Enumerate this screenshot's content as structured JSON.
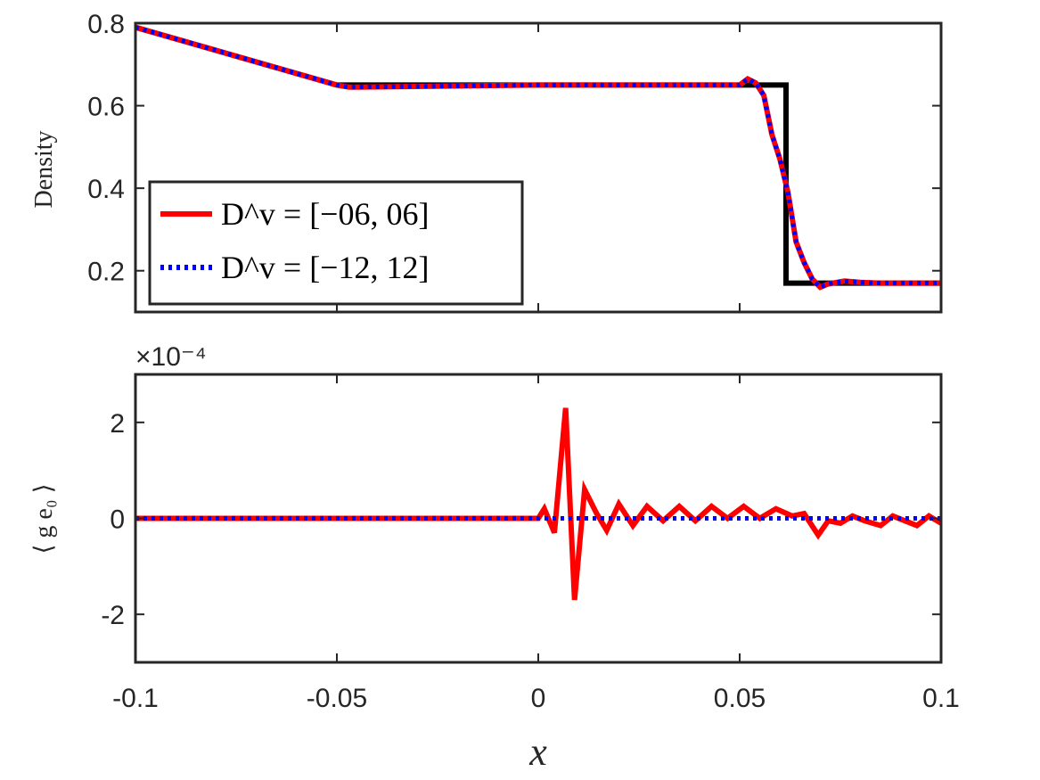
{
  "chart_data": [
    {
      "type": "line",
      "ylabel": "Density",
      "xlabel": "",
      "xlim": [
        -0.1,
        0.1
      ],
      "ylim": [
        0.1,
        0.8
      ],
      "xticks": [
        "",
        "",
        "",
        "",
        ""
      ],
      "yticks": [
        {
          "v": 0.2,
          "label": "0.2"
        },
        {
          "v": 0.4,
          "label": "0.4"
        },
        {
          "v": 0.6,
          "label": "0.6"
        },
        {
          "v": 0.8,
          "label": "0.8"
        }
      ],
      "legend": {
        "position": "bottom-left",
        "entries": [
          "D^v = [−06, 06]",
          "D^v = [−12, 12]"
        ]
      },
      "series": [
        {
          "name": "",
          "color": "#000000",
          "style": "solid",
          "x": [
            -0.1,
            -0.05,
            0.0615,
            0.0615,
            0.1
          ],
          "y": [
            0.79,
            0.65,
            0.65,
            0.17,
            0.17
          ]
        },
        {
          "name": "D^v = [−06, 06]",
          "color": "#ff0000",
          "style": "solid",
          "x": [
            -0.1,
            -0.05,
            -0.047,
            -0.045,
            0.0,
            0.05,
            0.052,
            0.054,
            0.056,
            0.058,
            0.06,
            0.062,
            0.064,
            0.066,
            0.068,
            0.07,
            0.072,
            0.076,
            0.08,
            0.085,
            0.1
          ],
          "y": [
            0.79,
            0.65,
            0.645,
            0.645,
            0.65,
            0.65,
            0.665,
            0.655,
            0.625,
            0.53,
            0.47,
            0.39,
            0.27,
            0.22,
            0.18,
            0.16,
            0.168,
            0.175,
            0.172,
            0.17,
            0.17
          ]
        },
        {
          "name": "D^v = [−12, 12]",
          "color": "#0000ff",
          "style": "dotted",
          "x": [
            -0.1,
            -0.05,
            -0.047,
            -0.045,
            0.0,
            0.05,
            0.052,
            0.054,
            0.056,
            0.058,
            0.06,
            0.062,
            0.064,
            0.066,
            0.068,
            0.07,
            0.072,
            0.076,
            0.08,
            0.085,
            0.1
          ],
          "y": [
            0.79,
            0.65,
            0.645,
            0.645,
            0.65,
            0.65,
            0.665,
            0.655,
            0.625,
            0.53,
            0.47,
            0.39,
            0.27,
            0.22,
            0.18,
            0.16,
            0.168,
            0.175,
            0.172,
            0.17,
            0.17
          ]
        }
      ]
    },
    {
      "type": "line",
      "ylabel": "⟨ g e₀ ⟩",
      "xlabel": "x",
      "xlim": [
        -0.1,
        0.1
      ],
      "ylim": [
        -3,
        3
      ],
      "exponent_label": "×10⁻⁴",
      "xticks": [
        "-0.1",
        "-0.05",
        "0",
        "0.05",
        "0.1"
      ],
      "yticks": [
        {
          "v": -2,
          "label": "-2"
        },
        {
          "v": 0,
          "label": "0"
        },
        {
          "v": 2,
          "label": "2"
        }
      ],
      "series": [
        {
          "name": "D^v = [−06, 06]",
          "color": "#ff0000",
          "style": "solid",
          "x": [
            -0.1,
            0.0,
            0.0015,
            0.004,
            0.0068,
            0.009,
            0.0115,
            0.0145,
            0.017,
            0.02,
            0.0235,
            0.027,
            0.031,
            0.035,
            0.039,
            0.043,
            0.047,
            0.051,
            0.055,
            0.059,
            0.063,
            0.066,
            0.0695,
            0.072,
            0.075,
            0.078,
            0.081,
            0.085,
            0.088,
            0.091,
            0.094,
            0.097,
            0.1
          ],
          "y": [
            0,
            0,
            0.2,
            -0.3,
            2.3,
            -1.7,
            0.6,
            0.1,
            -0.25,
            0.3,
            -0.15,
            0.25,
            -0.05,
            0.25,
            -0.05,
            0.25,
            0,
            0.25,
            0,
            0.2,
            0.05,
            0.1,
            -0.35,
            -0.05,
            -0.1,
            0.05,
            -0.05,
            -0.15,
            0.05,
            -0.05,
            -0.15,
            0.05,
            -0.1
          ]
        },
        {
          "name": "D^v = [−12, 12]",
          "color": "#0000ff",
          "style": "dotted",
          "x": [
            -0.1,
            0.1
          ],
          "y": [
            0,
            0
          ]
        }
      ]
    }
  ]
}
